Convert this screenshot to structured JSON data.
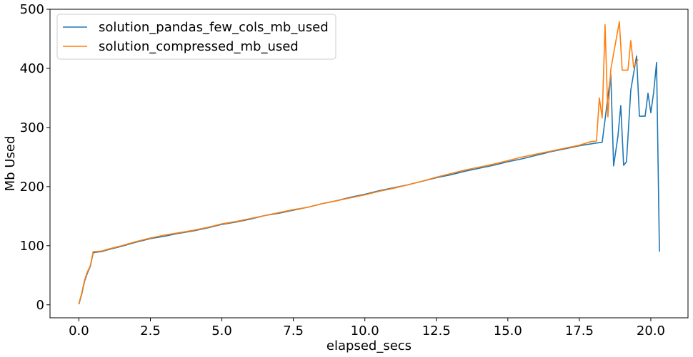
{
  "chart_data": {
    "type": "line",
    "xlabel": "elapsed_secs",
    "ylabel": "Mb Used",
    "xlim": [
      -1.01,
      21.3
    ],
    "ylim": [
      -22,
      500
    ],
    "x_ticks": [
      0.0,
      2.5,
      5.0,
      7.5,
      10.0,
      12.5,
      15.0,
      17.5,
      20.0
    ],
    "x_tick_labels": [
      "0.0",
      "2.5",
      "5.0",
      "7.5",
      "10.0",
      "12.5",
      "15.0",
      "17.5",
      "20.0"
    ],
    "y_ticks": [
      0,
      100,
      200,
      300,
      400,
      500
    ],
    "y_tick_labels": [
      "0",
      "100",
      "200",
      "300",
      "400",
      "500"
    ],
    "grid": false,
    "legend_position": "top-left",
    "series": [
      {
        "name": "solution_pandas_few_cols_mb_used",
        "color": "#1f77b4",
        "points": [
          [
            0.0,
            1
          ],
          [
            0.1,
            18
          ],
          [
            0.2,
            40
          ],
          [
            0.3,
            54
          ],
          [
            0.4,
            65
          ],
          [
            0.5,
            88
          ],
          [
            0.6,
            89
          ],
          [
            0.8,
            90
          ],
          [
            1.0,
            93
          ],
          [
            1.5,
            99
          ],
          [
            2.0,
            106
          ],
          [
            2.5,
            112
          ],
          [
            3.0,
            116
          ],
          [
            3.5,
            121
          ],
          [
            4.0,
            125
          ],
          [
            4.5,
            130
          ],
          [
            5.0,
            136
          ],
          [
            5.5,
            140
          ],
          [
            6.0,
            145
          ],
          [
            6.5,
            151
          ],
          [
            7.0,
            155
          ],
          [
            7.5,
            160
          ],
          [
            8.0,
            165
          ],
          [
            8.5,
            171
          ],
          [
            9.0,
            176
          ],
          [
            9.5,
            182
          ],
          [
            10.0,
            187
          ],
          [
            10.5,
            193
          ],
          [
            11.0,
            198
          ],
          [
            11.5,
            203
          ],
          [
            12.0,
            209
          ],
          [
            12.5,
            215
          ],
          [
            13.0,
            220
          ],
          [
            13.5,
            226
          ],
          [
            14.0,
            231
          ],
          [
            14.5,
            236
          ],
          [
            15.0,
            242
          ],
          [
            15.5,
            247
          ],
          [
            16.0,
            253
          ],
          [
            16.5,
            259
          ],
          [
            17.0,
            264
          ],
          [
            17.5,
            269
          ],
          [
            18.0,
            273
          ],
          [
            18.3,
            275
          ],
          [
            18.6,
            390
          ],
          [
            18.7,
            235
          ],
          [
            18.85,
            285
          ],
          [
            18.95,
            337
          ],
          [
            19.05,
            236
          ],
          [
            19.15,
            242
          ],
          [
            19.3,
            363
          ],
          [
            19.5,
            421
          ],
          [
            19.6,
            319
          ],
          [
            19.8,
            319
          ],
          [
            19.9,
            358
          ],
          [
            20.0,
            325
          ],
          [
            20.1,
            360
          ],
          [
            20.2,
            410
          ],
          [
            20.3,
            90
          ]
        ]
      },
      {
        "name": "solution_compressed_mb_used",
        "color": "#ff7f0e",
        "points": [
          [
            0.0,
            2
          ],
          [
            0.1,
            20
          ],
          [
            0.2,
            42
          ],
          [
            0.3,
            56
          ],
          [
            0.4,
            66
          ],
          [
            0.5,
            90
          ],
          [
            0.6,
            90
          ],
          [
            0.8,
            91
          ],
          [
            1.0,
            94
          ],
          [
            1.5,
            100
          ],
          [
            2.0,
            107
          ],
          [
            2.5,
            113
          ],
          [
            3.0,
            118
          ],
          [
            3.5,
            122
          ],
          [
            4.0,
            126
          ],
          [
            4.5,
            131
          ],
          [
            5.0,
            137
          ],
          [
            5.5,
            141
          ],
          [
            6.0,
            146
          ],
          [
            6.5,
            151
          ],
          [
            7.0,
            156
          ],
          [
            7.5,
            161
          ],
          [
            8.0,
            165
          ],
          [
            8.5,
            171
          ],
          [
            9.0,
            176
          ],
          [
            9.5,
            181
          ],
          [
            10.0,
            186
          ],
          [
            10.5,
            192
          ],
          [
            11.0,
            197
          ],
          [
            11.5,
            203
          ],
          [
            12.0,
            209
          ],
          [
            12.5,
            216
          ],
          [
            13.0,
            222
          ],
          [
            13.5,
            228
          ],
          [
            14.0,
            233
          ],
          [
            14.5,
            238
          ],
          [
            15.0,
            244
          ],
          [
            15.5,
            250
          ],
          [
            16.0,
            255
          ],
          [
            16.5,
            260
          ],
          [
            17.0,
            265
          ],
          [
            17.5,
            270
          ],
          [
            17.9,
            276
          ],
          [
            18.1,
            277
          ],
          [
            18.2,
            350
          ],
          [
            18.3,
            316
          ],
          [
            18.4,
            474
          ],
          [
            18.5,
            318
          ],
          [
            18.6,
            398
          ],
          [
            18.9,
            479
          ],
          [
            19.0,
            397
          ],
          [
            19.2,
            397
          ],
          [
            19.3,
            447
          ],
          [
            19.4,
            402
          ],
          [
            19.55,
            415
          ]
        ]
      }
    ]
  }
}
